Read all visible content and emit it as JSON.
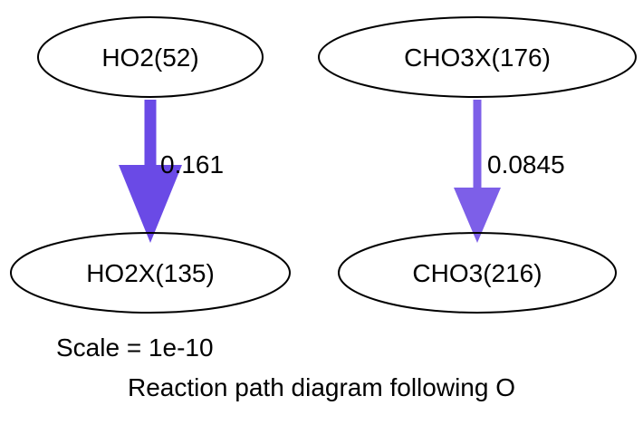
{
  "diagram": {
    "nodes": {
      "ho2": "HO2(52)",
      "cho3x": "CHO3X(176)",
      "ho2x": "HO2X(135)",
      "cho3": "CHO3(216)"
    },
    "edges": {
      "ho2_to_ho2x": {
        "label": "0.161",
        "color": "#6a4ae6"
      },
      "cho3x_to_cho3": {
        "label": "0.0845",
        "color": "#7d5fe8"
      }
    },
    "scale_text": "Scale = 1e-10",
    "caption": "Reaction path diagram following O"
  }
}
